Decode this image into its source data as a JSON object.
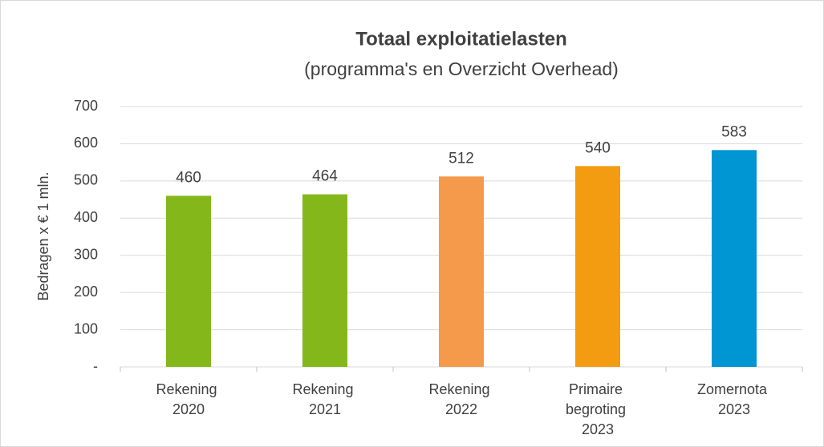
{
  "chart_data": {
    "type": "bar",
    "title": "Totaal exploitatielasten",
    "subtitle": "(programma's en Overzicht Overhead)",
    "y_label": "Bedragen x € 1 mln.",
    "categories": [
      "Rekening 2020",
      "Rekening 2021",
      "Rekening 2022",
      "Primaire begroting 2023",
      "Zomernota 2023"
    ],
    "values": [
      460,
      464,
      512,
      540,
      583
    ],
    "colors": [
      "#84b81a",
      "#84b81a",
      "#f59a4a",
      "#f39c12",
      "#0095d3"
    ],
    "ylim": [
      0,
      700
    ],
    "yticks": [
      {
        "value": 0,
        "label": "-"
      },
      100,
      200,
      300,
      400,
      500,
      600,
      700
    ],
    "grid": true
  }
}
